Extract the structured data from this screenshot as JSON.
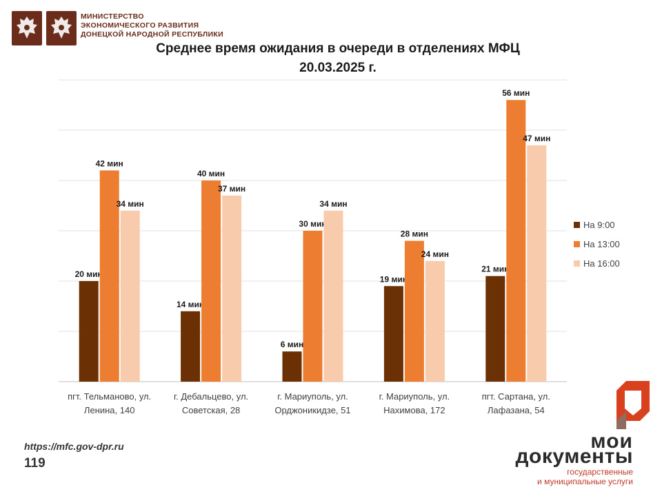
{
  "header": {
    "emblems": [
      "eagle-emblem-icon",
      "eagle-emblem-icon"
    ],
    "ministry_lines": [
      "МИНИСТЕРСТВО",
      "ЭКОНОМИЧЕСКОГО РАЗВИТИЯ",
      "ДОНЕЦКОЙ НАРОДНОЙ РЕСПУБЛИКИ"
    ],
    "color": "#6b2c1c"
  },
  "chart_data": {
    "type": "bar",
    "title": "Среднее время ожидания в очереди в отделениях МФЦ",
    "subtitle": "20.03.2025   г.",
    "categories": [
      [
        "пгт. Тельманово,  ул.",
        "Ленина, 140"
      ],
      [
        "г. Дебальцево, ул.",
        "Советская, 28"
      ],
      [
        "г. Мариуполь, ул.",
        "Орджоникидзе, 51"
      ],
      [
        "г. Мариуполь, ул.",
        "Нахимова, 172"
      ],
      [
        "пгт. Сартана, ул.",
        "Лафазана, 54"
      ]
    ],
    "series": [
      {
        "name": "На 9:00",
        "color": "#6b3105",
        "values": [
          20,
          14,
          6,
          19,
          21
        ],
        "labels": [
          "20 мин",
          "14 мин",
          "6 мин",
          "19 мин",
          "21 мин"
        ]
      },
      {
        "name": "На 13:00",
        "color": "#ed7d31",
        "values": [
          42,
          40,
          30,
          28,
          56
        ],
        "labels": [
          "42 мин",
          "40 мин",
          "30 мин",
          "28 мин",
          "56 мин"
        ]
      },
      {
        "name": "На 16:00",
        "color": "#f8cbad",
        "values": [
          34,
          37,
          34,
          24,
          47
        ],
        "labels": [
          "34 мин",
          "37 мин",
          "34 мин",
          "24 мин",
          "47 мин"
        ]
      }
    ],
    "ylim": [
      0,
      60
    ],
    "grid": true,
    "legend": "right"
  },
  "footer": {
    "url": "https://mfc.gov-dpr.ru",
    "page_number": "119",
    "logo_line1": "мои",
    "logo_line2": "документы",
    "logo_sub1": "государственные",
    "logo_sub2": "и муниципальные услуги",
    "logo_mark_color": "#d9401e"
  }
}
